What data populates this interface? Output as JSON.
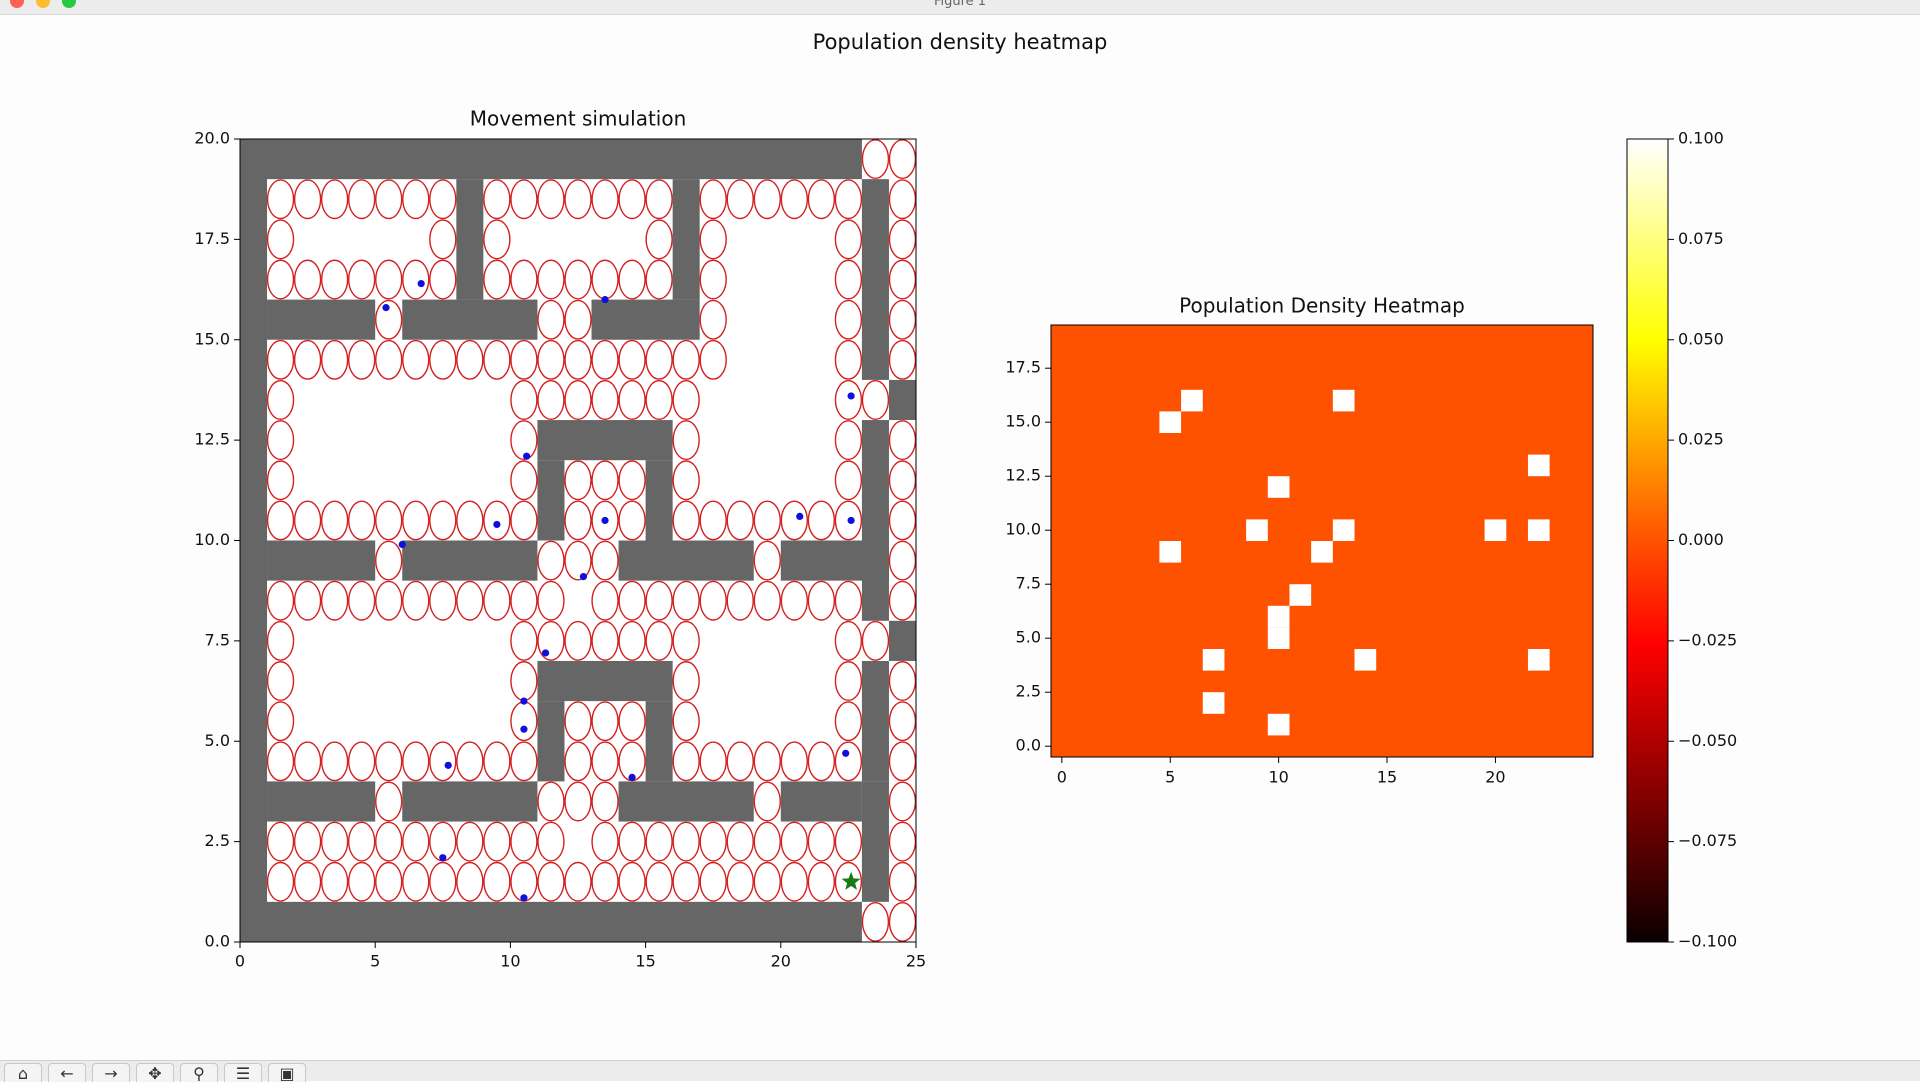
{
  "window": {
    "title": "Figure 1"
  },
  "figure": {
    "suptitle": "Population density heatmap"
  },
  "toolbar": [
    {
      "name": "home-icon",
      "glyph": "⌂"
    },
    {
      "name": "back-icon",
      "glyph": "←"
    },
    {
      "name": "forward-icon",
      "glyph": "→"
    },
    {
      "name": "pan-icon",
      "glyph": "✥"
    },
    {
      "name": "zoom-icon",
      "glyph": "⚲"
    },
    {
      "name": "configure-subplots-icon",
      "glyph": "☰"
    },
    {
      "name": "save-icon",
      "glyph": "▣"
    }
  ],
  "chart_data": [
    {
      "type": "scatter",
      "title": "Movement simulation",
      "xlabel": "",
      "ylabel": "",
      "xlim": [
        0,
        25
      ],
      "ylim": [
        0,
        20
      ],
      "xticks": [
        0,
        5,
        10,
        15,
        20,
        25
      ],
      "yticks": [
        0.0,
        2.5,
        5.0,
        7.5,
        10.0,
        12.5,
        15.0,
        17.5,
        20.0
      ],
      "grid": false,
      "colors": {
        "wall": "#666666",
        "ring": "#d42020",
        "agent": "#1010dd",
        "goal": "#1a7a1a",
        "floor": "#ffffff"
      },
      "walls": [
        [
          0,
          19,
          23,
          20
        ],
        [
          0,
          0,
          1,
          20
        ],
        [
          0,
          0,
          23,
          1
        ],
        [
          8,
          16,
          9,
          19
        ],
        [
          16,
          16,
          17,
          19
        ],
        [
          1,
          15,
          5,
          16
        ],
        [
          6,
          15,
          11,
          16
        ],
        [
          13,
          15,
          17,
          16
        ],
        [
          23,
          14,
          24,
          19
        ],
        [
          24,
          13,
          25,
          14
        ],
        [
          23,
          10,
          24,
          13
        ],
        [
          23,
          8,
          24,
          10
        ],
        [
          24,
          7,
          25,
          8
        ],
        [
          23,
          4,
          24,
          7
        ],
        [
          23,
          1,
          24,
          4
        ],
        [
          11,
          12,
          16,
          13
        ],
        [
          11,
          10,
          12,
          12
        ],
        [
          15,
          10,
          16,
          12
        ],
        [
          1,
          9,
          5,
          10
        ],
        [
          6,
          9,
          11,
          10
        ],
        [
          14,
          9,
          19,
          10
        ],
        [
          20,
          9,
          24,
          10
        ],
        [
          11,
          6,
          16,
          7
        ],
        [
          11,
          4,
          12,
          6
        ],
        [
          15,
          4,
          16,
          6
        ],
        [
          1,
          3,
          5,
          4
        ],
        [
          6,
          3,
          11,
          4
        ],
        [
          14,
          3,
          19,
          4
        ],
        [
          20,
          3,
          23,
          4
        ]
      ],
      "agents": [
        {
          "x": 5.4,
          "y": 15.8
        },
        {
          "x": 6.7,
          "y": 16.4
        },
        {
          "x": 13.5,
          "y": 16.0
        },
        {
          "x": 22.6,
          "y": 13.6
        },
        {
          "x": 10.6,
          "y": 12.1
        },
        {
          "x": 9.5,
          "y": 10.4
        },
        {
          "x": 13.5,
          "y": 10.5
        },
        {
          "x": 20.7,
          "y": 10.6
        },
        {
          "x": 22.6,
          "y": 10.5
        },
        {
          "x": 6.0,
          "y": 9.9
        },
        {
          "x": 12.7,
          "y": 9.1
        },
        {
          "x": 11.3,
          "y": 7.2
        },
        {
          "x": 10.5,
          "y": 6.0
        },
        {
          "x": 10.5,
          "y": 5.3
        },
        {
          "x": 7.7,
          "y": 4.4
        },
        {
          "x": 14.5,
          "y": 4.1
        },
        {
          "x": 22.4,
          "y": 4.7
        },
        {
          "x": 7.5,
          "y": 2.1
        },
        {
          "x": 10.5,
          "y": 1.1
        }
      ],
      "goal": {
        "x": 22.6,
        "y": 1.5,
        "marker": "star"
      }
    },
    {
      "type": "heatmap",
      "title": "Population Density Heatmap",
      "xlabel": "",
      "ylabel": "",
      "xlim": [
        -0.5,
        24.5
      ],
      "ylim": [
        -0.5,
        19.5
      ],
      "xticks": [
        0,
        5,
        10,
        15,
        20
      ],
      "yticks": [
        0.0,
        2.5,
        5.0,
        7.5,
        10.0,
        12.5,
        15.0,
        17.5
      ],
      "colormap": "hot",
      "background_color": "#ff5200",
      "cell_color": "#ffffff",
      "occupied_cells": [
        [
          5,
          15
        ],
        [
          6,
          16
        ],
        [
          13,
          16
        ],
        [
          22,
          13
        ],
        [
          10,
          12
        ],
        [
          9,
          10
        ],
        [
          13,
          10
        ],
        [
          20,
          10
        ],
        [
          22,
          10
        ],
        [
          5,
          9
        ],
        [
          12,
          9
        ],
        [
          11,
          7
        ],
        [
          10,
          6
        ],
        [
          10,
          5
        ],
        [
          7,
          4
        ],
        [
          14,
          4
        ],
        [
          22,
          4
        ],
        [
          7,
          2
        ],
        [
          10,
          1
        ]
      ],
      "colorbar": {
        "min": -0.1,
        "max": 0.1,
        "ticks": [
          "0.100",
          "0.075",
          "0.050",
          "0.025",
          "0.000",
          "−0.025",
          "−0.050",
          "−0.075",
          "−0.100"
        ]
      }
    }
  ]
}
